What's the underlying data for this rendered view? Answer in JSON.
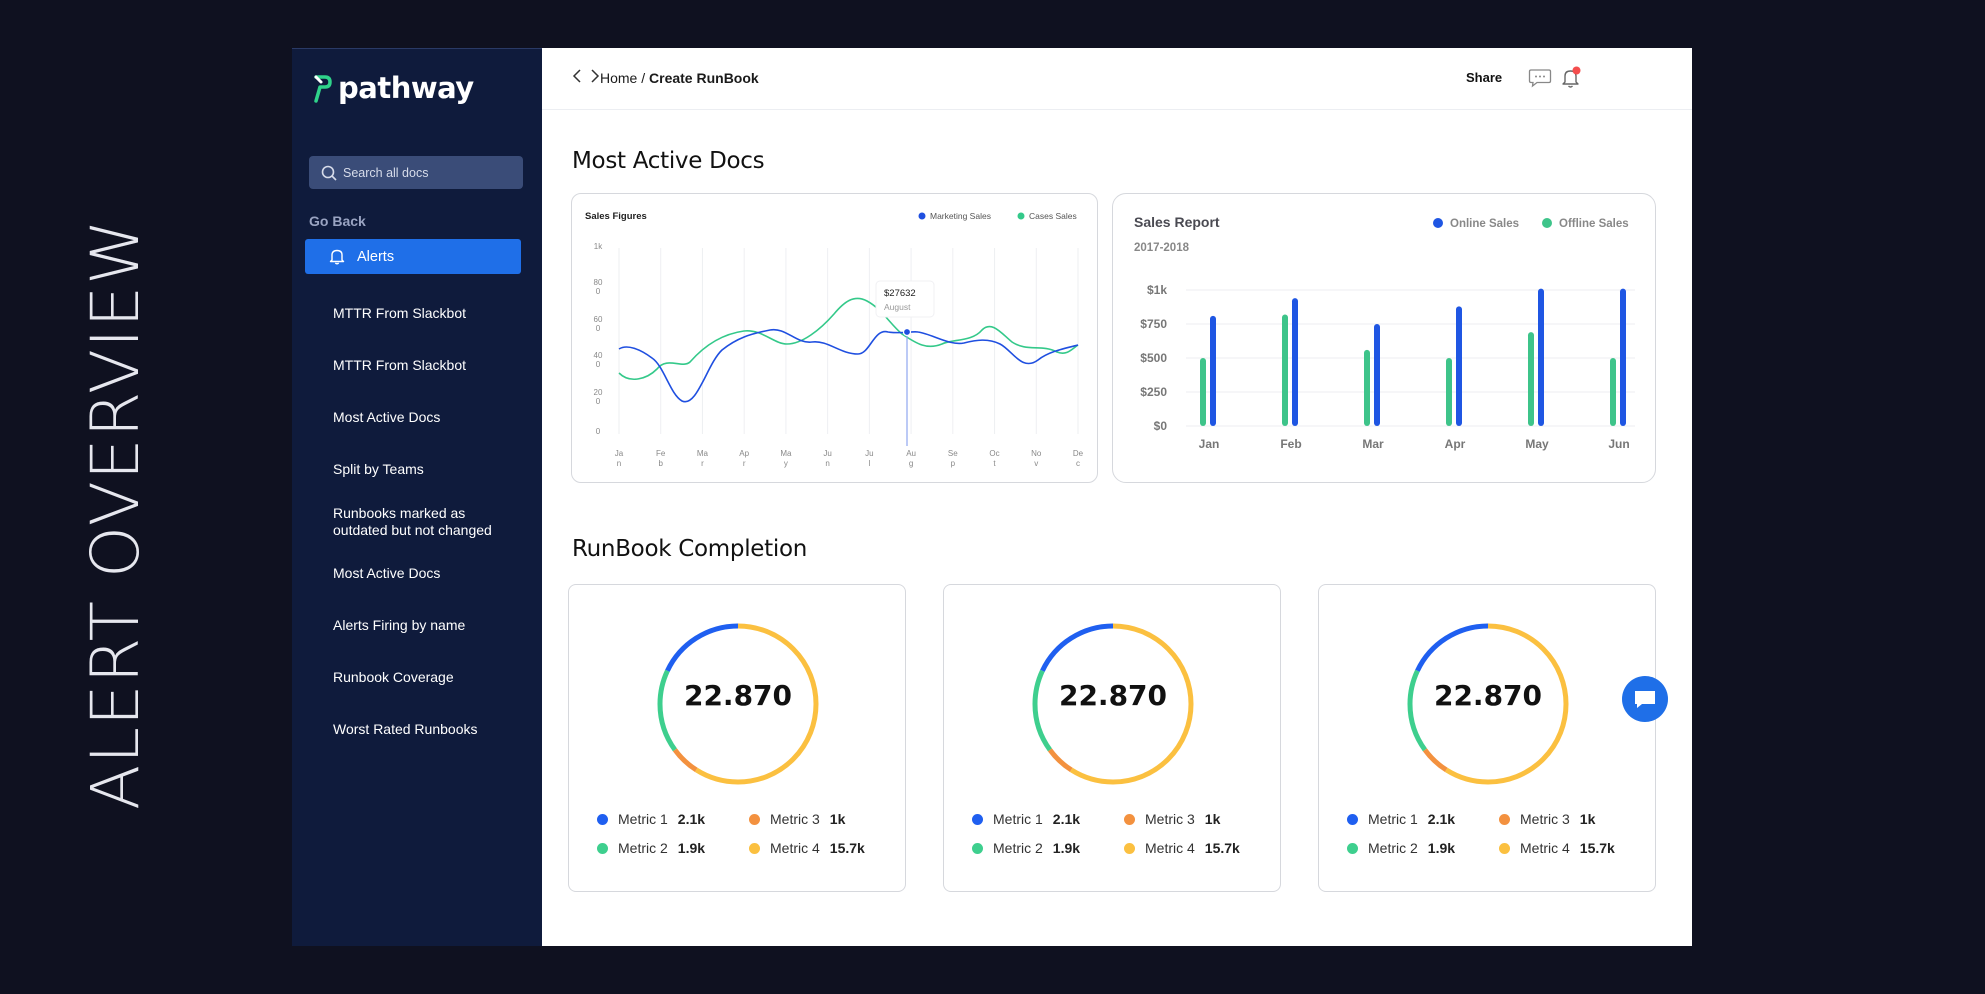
{
  "side_title": "ALERT OVERVIEW",
  "brand": {
    "name": "pathway",
    "accent": "#2fd38a"
  },
  "search": {
    "placeholder": "Search all docs"
  },
  "sidebar": {
    "go_back": "Go Back",
    "active_item": "Alerts",
    "items": [
      {
        "label": "MTTR From Slackbot"
      },
      {
        "label": "MTTR From Slackbot"
      },
      {
        "label": "Most Active Docs"
      },
      {
        "label": "Split by Teams"
      },
      {
        "label": "Runbooks marked as outdated but not changed"
      },
      {
        "label": "Most Active Docs"
      },
      {
        "label": "Alerts Firing by name"
      },
      {
        "label": "Runbook Coverage"
      },
      {
        "label": "Worst Rated Runbooks"
      }
    ]
  },
  "header": {
    "crumb_home": "Home /",
    "crumb_current": "Create RunBook",
    "share": "Share"
  },
  "sections": {
    "docs_title": "Most Active Docs",
    "completion_title": "RunBook Completion"
  },
  "line_chart": {
    "title": "Sales Figures",
    "legend": [
      {
        "name": "Marketing Sales",
        "color": "#1f4fe0"
      },
      {
        "name": "Cases Sales",
        "color": "#34c98a"
      }
    ],
    "y_ticks": [
      {
        "t1": "1k",
        "t2": ""
      },
      {
        "t1": "80",
        "t2": "0"
      },
      {
        "t1": "60",
        "t2": "0"
      },
      {
        "t1": "40",
        "t2": "0"
      },
      {
        "t1": "20",
        "t2": "0"
      },
      {
        "t1": "0",
        "t2": ""
      }
    ],
    "x_ticks": [
      {
        "t1": "Ja",
        "t2": "n"
      },
      {
        "t1": "Fe",
        "t2": "b"
      },
      {
        "t1": "Ma",
        "t2": "r"
      },
      {
        "t1": "Ap",
        "t2": "r"
      },
      {
        "t1": "Ma",
        "t2": "y"
      },
      {
        "t1": "Ju",
        "t2": "n"
      },
      {
        "t1": "Ju",
        "t2": "l"
      },
      {
        "t1": "Au",
        "t2": "g"
      },
      {
        "t1": "Se",
        "t2": "p"
      },
      {
        "t1": "Oc",
        "t2": "t"
      },
      {
        "t1": "No",
        "t2": "v"
      },
      {
        "t1": "De",
        "t2": "c"
      }
    ],
    "tooltip": {
      "value": "$27632",
      "label": "August"
    }
  },
  "chart_data": {
    "type": "bar",
    "title": "Sales Report",
    "subtitle": "2017-2018",
    "categories": [
      "Jan",
      "Feb",
      "Mar",
      "Apr",
      "May",
      "Jun"
    ],
    "y_ticks": [
      "$1k",
      "$750",
      "$500",
      "$250",
      "$0"
    ],
    "ylim": [
      0,
      1000
    ],
    "series": [
      {
        "name": "Offline Sales",
        "color": "#3ec48a",
        "values": [
          500,
          820,
          560,
          500,
          690,
          500
        ]
      },
      {
        "name": "Online Sales",
        "color": "#1f56e3",
        "values": [
          810,
          940,
          750,
          880,
          1010,
          1010
        ]
      }
    ],
    "legend_position": "top-right",
    "grid": true
  },
  "completion": {
    "value": "22.870",
    "metrics": [
      {
        "name": "Metric 1",
        "value": "2.1k",
        "color": "#1f5ff0"
      },
      {
        "name": "Metric 3",
        "value": "1k",
        "color": "#f3913f"
      },
      {
        "name": "Metric 2",
        "value": "1.9k",
        "color": "#3ecf8e"
      },
      {
        "name": "Metric 4",
        "value": "15.7k",
        "color": "#fbc040"
      }
    ]
  }
}
